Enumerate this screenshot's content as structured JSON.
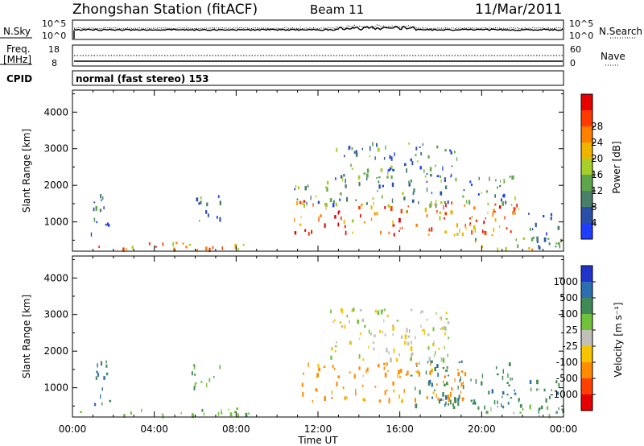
{
  "header": {
    "title": "Zhongshan Station (fitACF)",
    "beam": "Beam 11",
    "date": "11/Mar/2011"
  },
  "strips": {
    "nsky_label": "N.Sky",
    "nsky_ticks": [
      "10^5",
      "10^0"
    ],
    "nsearch_label": "N.Search",
    "nsearch_ticks": [
      "10^5",
      "10^0"
    ],
    "freq_label_1": "Freq.",
    "freq_label_2": "[MHz]",
    "freq_ticks": [
      "18",
      "8"
    ],
    "nave_label": "Nave",
    "nave_ticks": [
      "60",
      "0"
    ],
    "cpid_label": "CPID",
    "cpid_value": "normal (fast stereo) 153"
  },
  "chart_data": [
    {
      "type": "heatmap",
      "title": "Power",
      "xlabel": "Time UT",
      "ylabel": "Slant Range [km]",
      "x_ticks": [
        "00:00",
        "04:00",
        "08:00",
        "12:00",
        "16:00",
        "20:00",
        "00:00"
      ],
      "x_range_hours": [
        0,
        24
      ],
      "y_ticks": [
        1000,
        2000,
        3000,
        4000
      ],
      "ylim": [
        200,
        4600
      ],
      "colorbar_label": "Power [dB]",
      "colorbar_ticks": [
        "4",
        "8",
        "12",
        "16",
        "20",
        "24",
        "28"
      ],
      "colorbar_colors": [
        "#1f3dff",
        "#2b4fa8",
        "#4a7f69",
        "#5fa64a",
        "#a7cf2a",
        "#f0b400",
        "#ff8000",
        "#ff3a00",
        "#e60000"
      ],
      "echo_regions": [
        {
          "t0": 0.2,
          "t1": 9.8,
          "r0": 260,
          "r1": 460,
          "value": 22,
          "note": "near-range ground band"
        },
        {
          "t0": 0.8,
          "t1": 1.8,
          "r0": 550,
          "r1": 1800,
          "value": 6
        },
        {
          "t0": 5.8,
          "t1": 7.2,
          "r0": 950,
          "r1": 1750,
          "value": 8
        },
        {
          "t0": 10.8,
          "t1": 21.8,
          "r0": 650,
          "r1": 1600,
          "value": 24,
          "note": "main afternoon echo"
        },
        {
          "t0": 10.8,
          "t1": 21.8,
          "r0": 1500,
          "r1": 2300,
          "value": 10
        },
        {
          "t0": 12.8,
          "t1": 18.8,
          "r0": 2200,
          "r1": 3200,
          "value": 8
        },
        {
          "t0": 19.5,
          "t1": 24.0,
          "r0": 260,
          "r1": 600,
          "value": 16
        },
        {
          "t0": 22.2,
          "t1": 23.8,
          "r0": 300,
          "r1": 1300,
          "value": 6
        }
      ]
    },
    {
      "type": "heatmap",
      "title": "Velocity",
      "xlabel": "Time UT",
      "ylabel": "Slant Range [km]",
      "x_ticks": [
        "00:00",
        "04:00",
        "08:00",
        "12:00",
        "16:00",
        "20:00",
        "00:00"
      ],
      "x_range_hours": [
        0,
        24
      ],
      "y_ticks": [
        1000,
        2000,
        3000,
        4000
      ],
      "ylim": [
        200,
        4600
      ],
      "colorbar_label": "Velocity [m s⁻¹]",
      "colorbar_ticks": [
        "1000",
        "500",
        "100",
        "25",
        "-25",
        "-100",
        "-500",
        "-1000"
      ],
      "colorbar_colors": [
        "#2233cc",
        "#2b6fb0",
        "#3f8a55",
        "#6fc23a",
        "#c0c0b8",
        "#f7c400",
        "#ff8c00",
        "#ff4000",
        "#e60000"
      ],
      "echo_regions": [
        {
          "t0": 0.2,
          "t1": 9.8,
          "r0": 260,
          "r1": 460,
          "value": 60,
          "note": "near-range band"
        },
        {
          "t0": 0.8,
          "t1": 1.8,
          "r0": 550,
          "r1": 1800,
          "value": 500
        },
        {
          "t0": 5.8,
          "t1": 7.2,
          "r0": 950,
          "r1": 1750,
          "value": 100
        },
        {
          "t0": 11.2,
          "t1": 19.2,
          "r0": 650,
          "r1": 1700,
          "value": -150,
          "note": "main afternoon echo"
        },
        {
          "t0": 12.5,
          "t1": 18.5,
          "r0": 1700,
          "r1": 3200,
          "value": 0
        },
        {
          "t0": 16.5,
          "t1": 21.8,
          "r0": 450,
          "r1": 1800,
          "value": 400
        },
        {
          "t0": 19.5,
          "t1": 24.0,
          "r0": 260,
          "r1": 550,
          "value": 80
        },
        {
          "t0": 22.3,
          "t1": 23.8,
          "r0": 300,
          "r1": 1300,
          "value": 300
        }
      ]
    }
  ]
}
